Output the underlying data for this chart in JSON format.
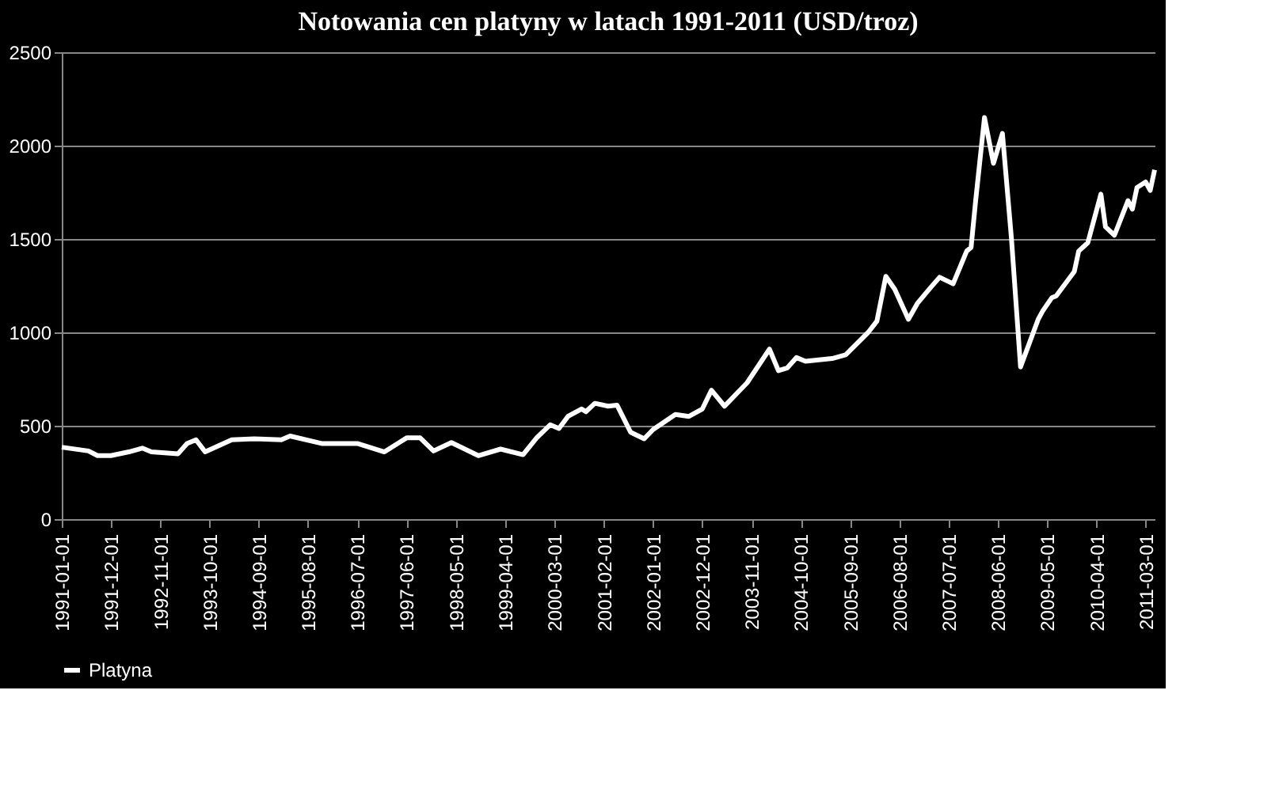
{
  "chart_data": {
    "type": "line",
    "title": "Notowania cen platyny w latach 1991-2011 (USD/troz)",
    "x": [
      "1991-01",
      "1991-07",
      "1991-09",
      "1991-12",
      "1992-04",
      "1992-07",
      "1992-09",
      "1993-03",
      "1993-05",
      "1993-07",
      "1993-09",
      "1994-03",
      "1994-08",
      "1995-02",
      "1995-04",
      "1995-11",
      "1996-07",
      "1997-01",
      "1997-06",
      "1997-09",
      "1997-12",
      "1998-04",
      "1998-10",
      "1999-03",
      "1999-08",
      "1999-11",
      "2000-02",
      "2000-04",
      "2000-06",
      "2000-09",
      "2000-10",
      "2000-12",
      "2001-03",
      "2001-05",
      "2001-08",
      "2001-11",
      "2002-01",
      "2002-06",
      "2002-09",
      "2002-12",
      "2003-02",
      "2003-05",
      "2003-10",
      "2004-03",
      "2004-05",
      "2004-07",
      "2004-09",
      "2004-11",
      "2005-05",
      "2005-08",
      "2006-01",
      "2006-03",
      "2006-05",
      "2006-07",
      "2006-10",
      "2006-12",
      "2007-03",
      "2007-05",
      "2007-08",
      "2007-11",
      "2007-12",
      "2008-01",
      "2008-03",
      "2008-05",
      "2008-07",
      "2008-09",
      "2008-11",
      "2009-03",
      "2009-04",
      "2009-06",
      "2009-07",
      "2009-11",
      "2009-12",
      "2010-02",
      "2010-05",
      "2010-06",
      "2010-08",
      "2010-11",
      "2010-12",
      "2011-01",
      "2011-03",
      "2011-04",
      "2011-05"
    ],
    "series": [
      {
        "name": "Platyna",
        "color": "#ffffff",
        "values": [
          385,
          365,
          340,
          340,
          360,
          380,
          360,
          350,
          405,
          425,
          360,
          425,
          430,
          425,
          445,
          405,
          405,
          360,
          435,
          435,
          365,
          410,
          340,
          375,
          345,
          435,
          505,
          485,
          550,
          590,
          575,
          620,
          605,
          610,
          465,
          430,
          480,
          560,
          550,
          590,
          690,
          605,
          730,
          910,
          795,
          810,
          865,
          845,
          860,
          880,
          1000,
          1060,
          1300,
          1230,
          1070,
          1155,
          1240,
          1295,
          1260,
          1435,
          1455,
          1705,
          2150,
          1905,
          2065,
          1495,
          815,
          1070,
          1115,
          1185,
          1195,
          1325,
          1435,
          1480,
          1740,
          1565,
          1520,
          1705,
          1660,
          1775,
          1805,
          1760,
          1870
        ]
      }
    ],
    "ylim": [
      0,
      2500
    ],
    "yticks": [
      0,
      500,
      1000,
      1500,
      2000,
      2500
    ],
    "xlim": [
      "1991-01-01",
      "2011-05-01"
    ],
    "xticks": [
      "1991-01-01",
      "1991-12-01",
      "1992-11-01",
      "1993-10-01",
      "1994-09-01",
      "1995-08-01",
      "1996-07-01",
      "1997-06-01",
      "1998-05-01",
      "1999-04-01",
      "2000-03-01",
      "2001-02-01",
      "2002-01-01",
      "2002-12-01",
      "2003-11-01",
      "2004-10-01",
      "2005-09-01",
      "2006-08-01",
      "2007-07-01",
      "2008-06-01",
      "2009-05-01",
      "2010-04-01",
      "2011-03-01"
    ],
    "grid": "y",
    "legend": "bottom",
    "marker": "none",
    "line_style": "solid"
  }
}
